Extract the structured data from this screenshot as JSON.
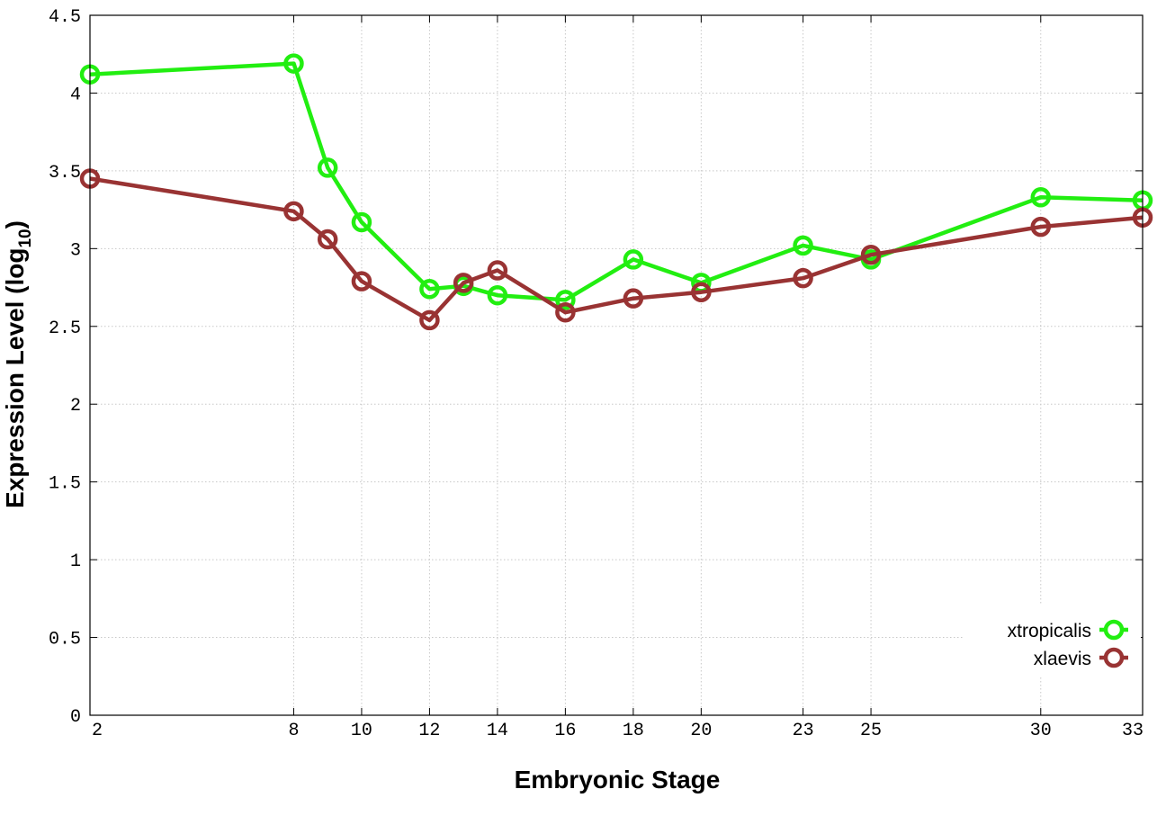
{
  "chart_data": {
    "type": "line",
    "title": "",
    "xlabel": "Embryonic Stage",
    "ylabel_main": "Expression Level (log",
    "ylabel_sub": "10",
    "ylabel_close": ")",
    "xlim": [
      2,
      33
    ],
    "ylim": [
      0,
      4.5
    ],
    "x_ticks": [
      2,
      8,
      10,
      12,
      14,
      16,
      18,
      20,
      23,
      25,
      30,
      33
    ],
    "y_ticks": [
      0,
      0.5,
      1,
      1.5,
      2,
      2.5,
      3,
      3.5,
      4,
      4.5
    ],
    "y_tick_labels": [
      "0",
      "0.5",
      "1",
      "1.5",
      "2",
      "2.5",
      "3",
      "3.5",
      "4",
      "4.5"
    ],
    "grid": true,
    "legend_position": "bottom-right",
    "x": [
      2,
      8,
      9,
      10,
      12,
      13,
      14,
      16,
      18,
      20,
      23,
      25,
      30,
      33
    ],
    "series": [
      {
        "name": "xtropicalis",
        "color": "#22ee11",
        "values": [
          4.12,
          4.19,
          3.52,
          3.17,
          2.74,
          2.76,
          2.7,
          2.67,
          2.93,
          2.78,
          3.02,
          2.93,
          3.33,
          3.31
        ]
      },
      {
        "name": "xlaevis",
        "color": "#993333",
        "values": [
          3.45,
          3.24,
          3.06,
          2.79,
          2.54,
          2.78,
          2.86,
          2.59,
          2.68,
          2.72,
          2.81,
          2.96,
          3.14,
          3.2
        ]
      }
    ]
  }
}
